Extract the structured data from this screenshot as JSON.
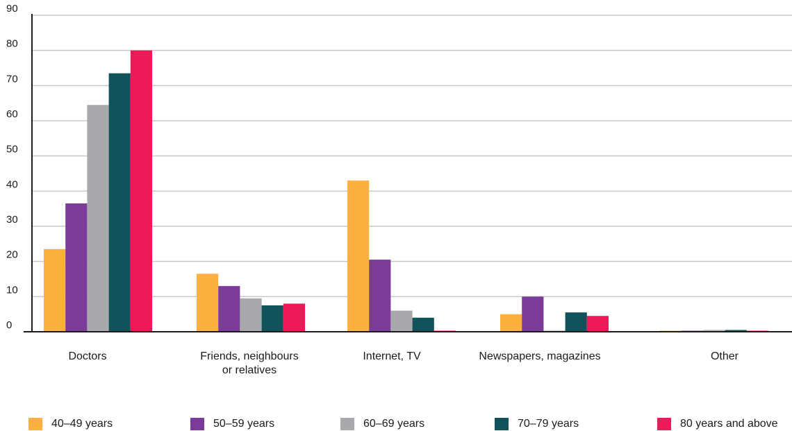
{
  "chart_data": {
    "type": "bar",
    "categories": [
      [
        "Doctors"
      ],
      [
        "Friends, neighbours",
        "or relatives"
      ],
      [
        "Internet, TV"
      ],
      [
        "Newspapers, magazines"
      ],
      [
        "Other"
      ]
    ],
    "ylim": [
      0,
      90
    ],
    "yticks": [
      "0",
      "10",
      "20",
      "30",
      "40",
      "50",
      "60",
      "70",
      "80",
      "90"
    ],
    "grid": true,
    "legend_position": "bottom",
    "series": [
      {
        "name": "40–49 years",
        "color": "#FBB040",
        "values": [
          23.5,
          16.5,
          43,
          5,
          0.3
        ]
      },
      {
        "name": "50–59 years",
        "color": "#7B3B99",
        "values": [
          36.5,
          13,
          20.5,
          10,
          0.3
        ]
      },
      {
        "name": "60–69 years",
        "color": "#A7A9AC",
        "values": [
          64.5,
          9.5,
          6,
          0.3,
          0.5
        ]
      },
      {
        "name": "70–79 years",
        "color": "#12535B",
        "values": [
          73.5,
          7.5,
          4,
          5.5,
          0.5
        ]
      },
      {
        "name": "80 years and above",
        "color": "#EC1A58",
        "values": [
          80,
          8,
          0.3,
          4.5,
          0.3
        ]
      }
    ]
  }
}
